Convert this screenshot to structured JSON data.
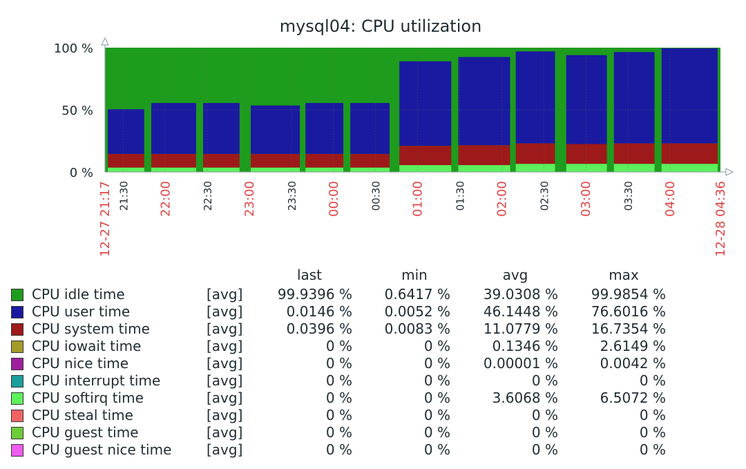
{
  "chart_data": {
    "type": "area",
    "title": "mysql04: CPU utilization",
    "y_ticks": [
      "100 %",
      "50 %",
      "0 %"
    ],
    "ylim": [
      0,
      100
    ],
    "x_ticks": [
      {
        "label": "12-27 21:17",
        "t": "21:17",
        "major": true
      },
      {
        "label": "21:30",
        "t": "21:30",
        "major": false
      },
      {
        "label": "22:00",
        "t": "22:00",
        "major": true
      },
      {
        "label": "22:30",
        "t": "22:30",
        "major": false
      },
      {
        "label": "23:00",
        "t": "23:00",
        "major": true
      },
      {
        "label": "23:30",
        "t": "23:30",
        "major": false
      },
      {
        "label": "00:00",
        "t": "00:00",
        "major": true
      },
      {
        "label": "00:30",
        "t": "00:30",
        "major": false
      },
      {
        "label": "01:00",
        "t": "01:00",
        "major": true
      },
      {
        "label": "01:30",
        "t": "01:30",
        "major": false
      },
      {
        "label": "02:00",
        "t": "02:00",
        "major": true
      },
      {
        "label": "02:30",
        "t": "02:30",
        "major": false
      },
      {
        "label": "03:00",
        "t": "03:00",
        "major": true
      },
      {
        "label": "03:30",
        "t": "03:30",
        "major": false
      },
      {
        "label": "04:00",
        "t": "04:00",
        "major": true
      },
      {
        "label": "12-28 04:36",
        "t": "04:36",
        "major": true
      }
    ],
    "xlim": [
      "12-27 21:17",
      "12-28 04:36"
    ],
    "stacked": true,
    "busy_intervals": [
      {
        "start": "21:19",
        "end": "21:45",
        "softirq": 3.5,
        "system": 11,
        "user": 36
      },
      {
        "start": "21:50",
        "end": "22:22",
        "softirq": 3.5,
        "system": 11,
        "user": 41
      },
      {
        "start": "22:27",
        "end": "22:53",
        "softirq": 3.5,
        "system": 11,
        "user": 41
      },
      {
        "start": "23:01",
        "end": "23:36",
        "softirq": 3.5,
        "system": 11,
        "user": 39
      },
      {
        "start": "23:40",
        "end": "24:07",
        "softirq": 3.5,
        "system": 11,
        "user": 41
      },
      {
        "start": "24:12",
        "end": "24:40",
        "softirq": 3.5,
        "system": 11,
        "user": 41
      },
      {
        "start": "24:47",
        "end": "25:24",
        "softirq": 5.5,
        "system": 15.5,
        "user": 68
      },
      {
        "start": "25:29",
        "end": "26:06",
        "softirq": 5.5,
        "system": 16,
        "user": 71
      },
      {
        "start": "26:10",
        "end": "26:38",
        "softirq": 6.5,
        "system": 16.5,
        "user": 74
      },
      {
        "start": "26:46",
        "end": "27:15",
        "softirq": 6.5,
        "system": 16,
        "user": 71.5
      },
      {
        "start": "27:20",
        "end": "27:49",
        "softirq": 6.5,
        "system": 16.5,
        "user": 73.5
      },
      {
        "start": "27:54",
        "end": "28:34",
        "softirq": 6.5,
        "system": 16.5,
        "user": 76.5
      }
    ],
    "series": [
      {
        "name": "CPU idle time",
        "fn": "[avg]",
        "color": "#1e9c1e",
        "last": "99.9396 %",
        "min": "0.6417 %",
        "avg": "39.0308 %",
        "max": "99.9854 %"
      },
      {
        "name": "CPU user time",
        "fn": "[avg]",
        "color": "#1a1aa0",
        "last": "0.0146 %",
        "min": "0.0052 %",
        "avg": "46.1448 %",
        "max": "76.6016 %"
      },
      {
        "name": "CPU system time",
        "fn": "[avg]",
        "color": "#9e1a1a",
        "last": "0.0396 %",
        "min": "0.0083 %",
        "avg": "11.0779 %",
        "max": "16.7354 %"
      },
      {
        "name": "CPU iowait time",
        "fn": "[avg]",
        "color": "#a39a2a",
        "last": "0 %",
        "min": "0 %",
        "avg": "0.1346 %",
        "max": "2.6149 %"
      },
      {
        "name": "CPU nice time",
        "fn": "[avg]",
        "color": "#9e1e9e",
        "last": "0 %",
        "min": "0 %",
        "avg": "0.00001 %",
        "max": "0.0042 %"
      },
      {
        "name": "CPU interrupt time",
        "fn": "[avg]",
        "color": "#1e9e9e",
        "last": "0 %",
        "min": "0 %",
        "avg": "0 %",
        "max": "0 %"
      },
      {
        "name": "CPU softirq time",
        "fn": "[avg]",
        "color": "#5cf05c",
        "last": "0 %",
        "min": "0 %",
        "avg": "3.6068 %",
        "max": "6.5072 %"
      },
      {
        "name": "CPU steal time",
        "fn": "[avg]",
        "color": "#f06464",
        "last": "0 %",
        "min": "0 %",
        "avg": "0 %",
        "max": "0 %"
      },
      {
        "name": "CPU guest time",
        "fn": "[avg]",
        "color": "#6ecb3a",
        "last": "0 %",
        "min": "0 %",
        "avg": "0 %",
        "max": "0 %"
      },
      {
        "name": "CPU guest nice time",
        "fn": "[avg]",
        "color": "#f05cf0",
        "last": "0 %",
        "min": "0 %",
        "avg": "0 %",
        "max": "0 %"
      }
    ],
    "legend_columns": [
      "last",
      "min",
      "avg",
      "max"
    ],
    "legend_position": "bottom"
  }
}
